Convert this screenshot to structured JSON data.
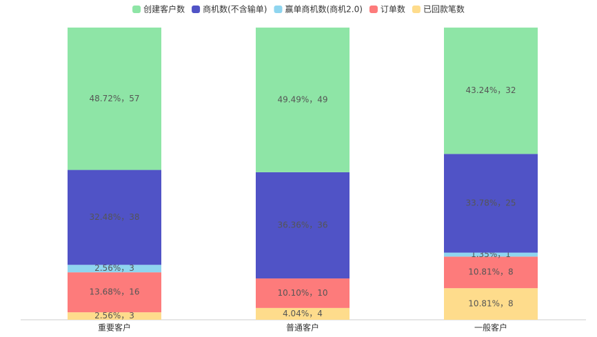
{
  "chart_data": {
    "type": "stacked_bar_percent",
    "categories": [
      "重要客户",
      "普通客户",
      "一般客户"
    ],
    "ylim": [
      0,
      100
    ],
    "series": [
      {
        "name": "创建客户数",
        "color": "#8ee5a6",
        "values": [
          48.72,
          49.49,
          43.24
        ],
        "value_labels": [
          "48.72%，57",
          "49.49%，49",
          "43.24%，32"
        ]
      },
      {
        "name": "商机数(不含输单)",
        "color": "#5053c6",
        "values": [
          32.48,
          36.36,
          33.78
        ],
        "value_labels": [
          "32.48%，38",
          "36.36%，36",
          "33.78%，25"
        ]
      },
      {
        "name": "赢单商机数(商机2.0)",
        "color": "#8fd5ef",
        "values": [
          2.56,
          0,
          1.35
        ],
        "value_labels": [
          "2.56%，3",
          null,
          "1.35%，1"
        ]
      },
      {
        "name": "订单数",
        "color": "#fd7b7b",
        "values": [
          13.68,
          10.1,
          10.81
        ],
        "value_labels": [
          "13.68%，16",
          "10.10%，10",
          "10.81%，8"
        ]
      },
      {
        "name": "已回款笔数",
        "color": "#fedc8c",
        "values": [
          2.56,
          4.04,
          10.81
        ],
        "value_labels": [
          "2.56%，3",
          "4.04%，4",
          "10.81%，8"
        ]
      }
    ]
  }
}
